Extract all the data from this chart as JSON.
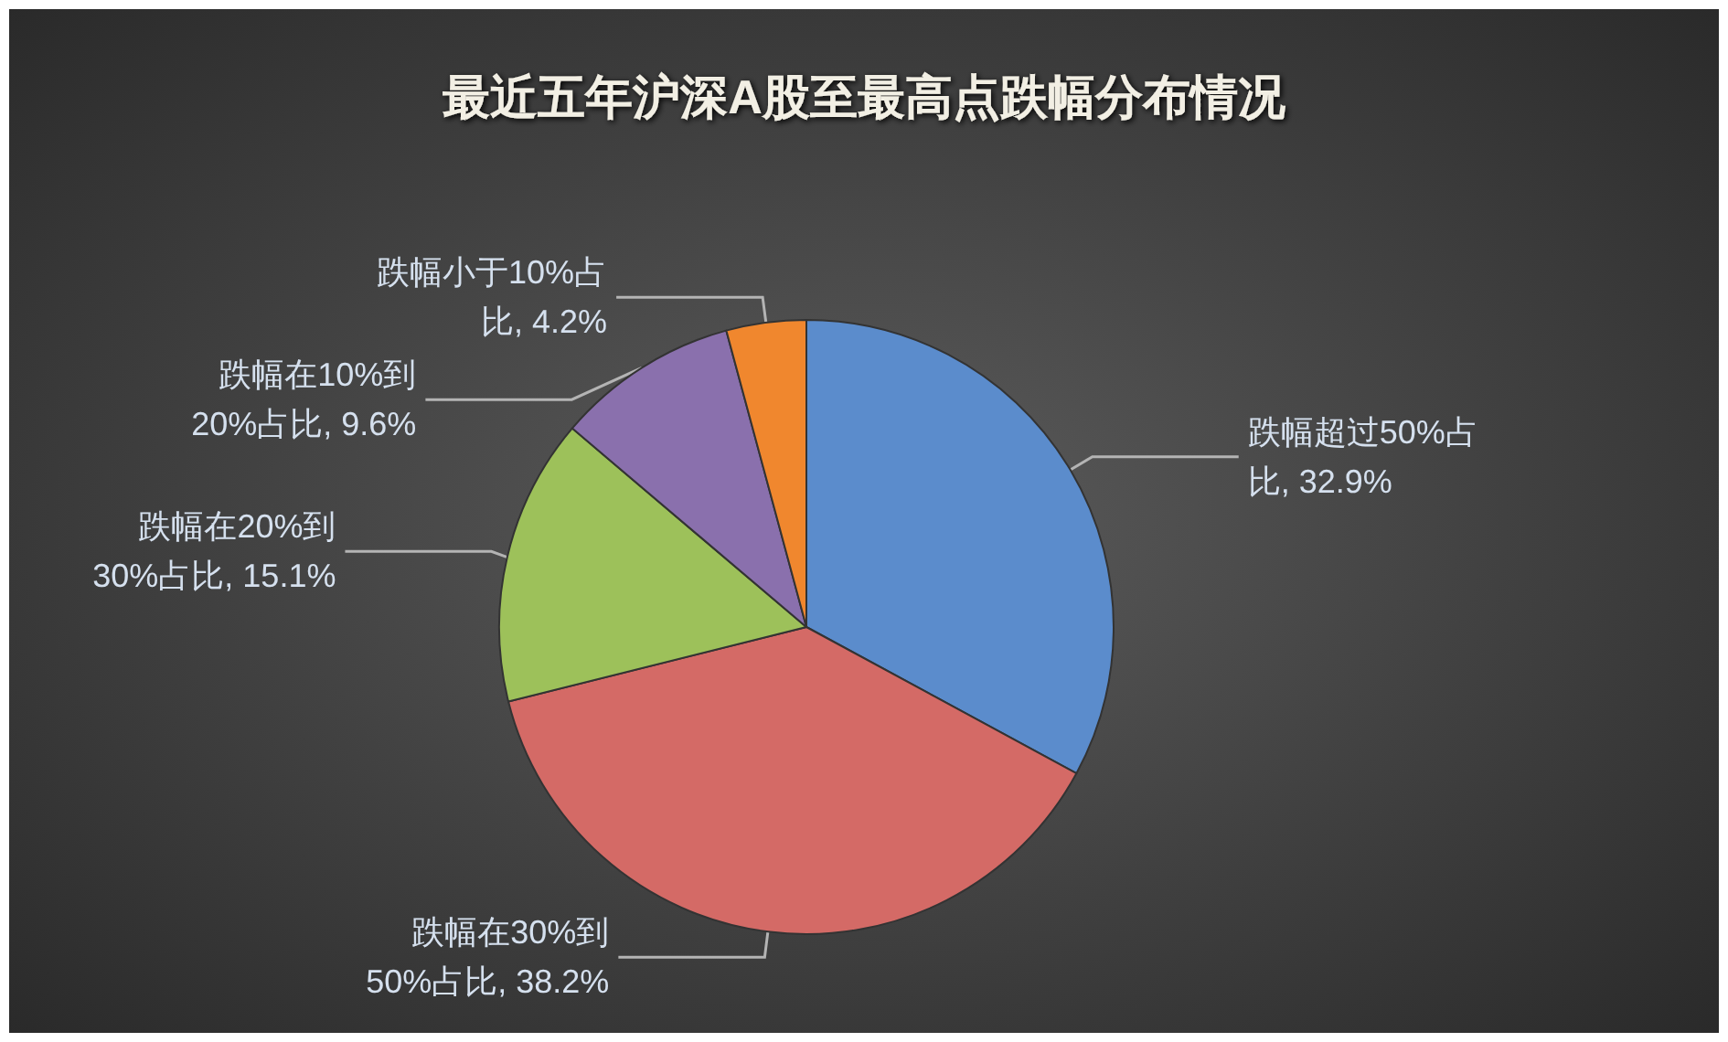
{
  "chart_data": {
    "type": "pie",
    "title": "最近五年沪深A股至最高点跌幅分布情况",
    "categories": [
      "跌幅超过50%占比",
      "跌幅在30%到50%占比",
      "跌幅在20%到30%占比",
      "跌幅在10%到20%占比",
      "跌幅小于10%占比"
    ],
    "values": [
      32.9,
      38.2,
      15.1,
      9.6,
      4.2
    ],
    "colors": [
      "#5b8ccc",
      "#d46a66",
      "#9dc15a",
      "#8a70ad",
      "#f0872e"
    ],
    "value_labels": [
      "32.9%",
      "38.2%",
      "15.1%",
      "9.6%",
      "4.2%"
    ]
  }
}
